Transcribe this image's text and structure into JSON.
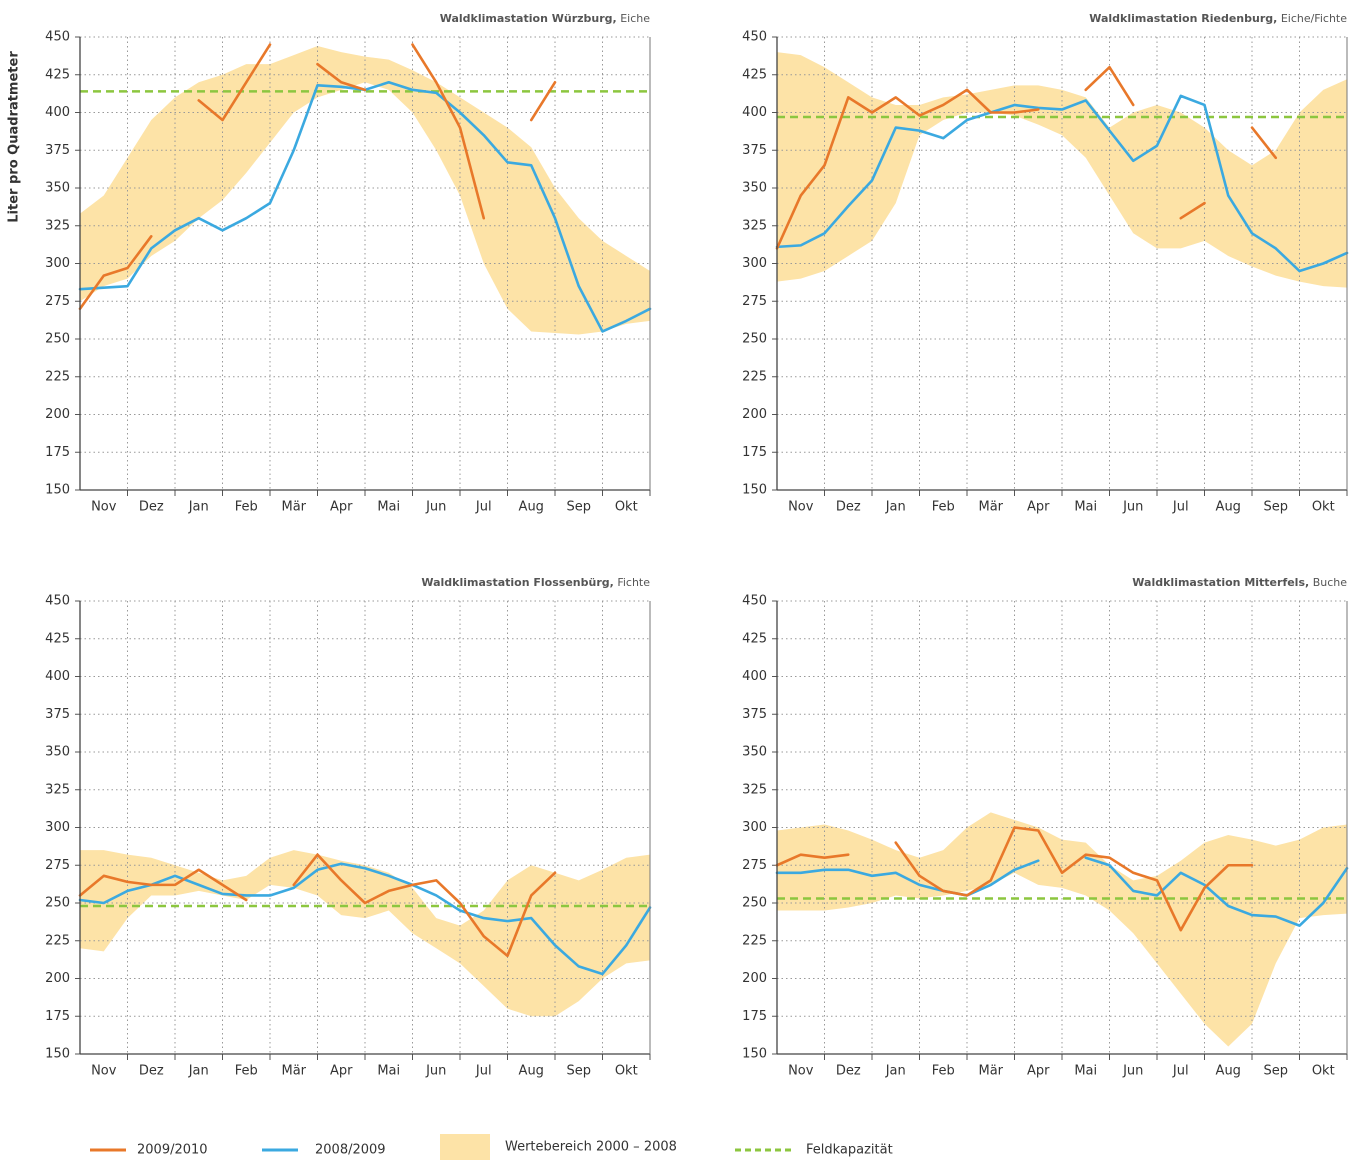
{
  "chart_data": [
    {
      "type": "line",
      "title": "Waldklimastation Würzburg,",
      "subtitle": "Eiche",
      "ylabel": "Liter pro Quadratmeter",
      "categories": [
        "Nov",
        "Dez",
        "Jan",
        "Feb",
        "Mär",
        "Apr",
        "Mai",
        "Jun",
        "Jul",
        "Aug",
        "Sep",
        "Okt"
      ],
      "x": [
        0,
        0.5,
        1,
        1.5,
        2,
        2.5,
        3,
        3.5,
        4,
        4.5,
        5,
        5.5,
        6,
        6.5,
        7,
        7.5,
        8,
        8.5,
        9,
        9.5,
        10,
        10.5,
        11,
        11.5,
        12
      ],
      "xlim": [
        0,
        12
      ],
      "ylim": [
        150,
        450
      ],
      "yticks": [
        150,
        175,
        200,
        225,
        250,
        275,
        300,
        325,
        350,
        375,
        400,
        425,
        450
      ],
      "grid": true,
      "series": [
        {
          "name": "2009/2010",
          "color": "#e8782a",
          "values": [
            270,
            292,
            297,
            318,
            null,
            408,
            395,
            420,
            445,
            null,
            432,
            420,
            415,
            null,
            445,
            420,
            390,
            330,
            null,
            395,
            420,
            null,
            null,
            null,
            null
          ]
        },
        {
          "name": "2008/2009",
          "color": "#3ba9e0",
          "values": [
            283,
            284,
            285,
            310,
            322,
            330,
            322,
            330,
            340,
            375,
            418,
            417,
            415,
            420,
            415,
            413,
            400,
            385,
            367,
            365,
            330,
            285,
            255,
            262,
            270
          ]
        },
        {
          "name": "Wertebereich 2000 – 2008",
          "color": "#fde3a7",
          "high": [
            333,
            345,
            370,
            395,
            410,
            420,
            425,
            432,
            432,
            438,
            444,
            440,
            437,
            435,
            428,
            420,
            410,
            400,
            390,
            377,
            350,
            330,
            315,
            305,
            295
          ],
          "low": [
            275,
            285,
            290,
            305,
            315,
            330,
            342,
            360,
            380,
            400,
            410,
            415,
            420,
            415,
            400,
            375,
            345,
            300,
            270,
            255,
            254,
            253,
            255,
            260,
            262
          ]
        },
        {
          "name": "Feldkapazität",
          "color": "#8cc63f",
          "value": 414
        }
      ]
    },
    {
      "type": "line",
      "title": "Waldklimastation Riedenburg,",
      "subtitle": "Eiche/Fichte",
      "categories": [
        "Nov",
        "Dez",
        "Jan",
        "Feb",
        "Mär",
        "Apr",
        "Mai",
        "Jun",
        "Jul",
        "Aug",
        "Sep",
        "Okt"
      ],
      "x": [
        0,
        0.5,
        1,
        1.5,
        2,
        2.5,
        3,
        3.5,
        4,
        4.5,
        5,
        5.5,
        6,
        6.5,
        7,
        7.5,
        8,
        8.5,
        9,
        9.5,
        10,
        10.5,
        11,
        11.5,
        12
      ],
      "xlim": [
        0,
        12
      ],
      "ylim": [
        150,
        450
      ],
      "yticks": [
        150,
        175,
        200,
        225,
        250,
        275,
        300,
        325,
        350,
        375,
        400,
        425,
        450
      ],
      "grid": true,
      "series": [
        {
          "name": "2009/2010",
          "color": "#e8782a",
          "values": [
            310,
            345,
            365,
            410,
            400,
            410,
            398,
            405,
            415,
            400,
            400,
            402,
            null,
            415,
            430,
            405,
            null,
            330,
            340,
            null,
            390,
            370,
            null,
            null,
            null
          ]
        },
        {
          "name": "2008/2009",
          "color": "#3ba9e0",
          "values": [
            311,
            312,
            320,
            338,
            355,
            390,
            388,
            383,
            395,
            400,
            405,
            403,
            402,
            408,
            388,
            368,
            378,
            411,
            405,
            345,
            320,
            310,
            295,
            300,
            307
          ]
        },
        {
          "name": "Wertebereich 2000 – 2008",
          "color": "#fde3a7",
          "high": [
            440,
            438,
            430,
            420,
            410,
            405,
            405,
            410,
            412,
            415,
            418,
            418,
            415,
            410,
            390,
            400,
            405,
            400,
            390,
            375,
            365,
            375,
            400,
            415,
            422
          ],
          "low": [
            288,
            290,
            295,
            305,
            315,
            340,
            385,
            395,
            400,
            400,
            398,
            392,
            385,
            370,
            345,
            320,
            310,
            310,
            315,
            305,
            298,
            292,
            288,
            285,
            284
          ]
        },
        {
          "name": "Feldkapazität",
          "color": "#8cc63f",
          "value": 397
        }
      ]
    },
    {
      "type": "line",
      "title": "Waldklimastation Flossenbürg,",
      "subtitle": "Fichte",
      "categories": [
        "Nov",
        "Dez",
        "Jan",
        "Feb",
        "Mär",
        "Apr",
        "Mai",
        "Jun",
        "Jul",
        "Aug",
        "Sep",
        "Okt"
      ],
      "x": [
        0,
        0.5,
        1,
        1.5,
        2,
        2.5,
        3,
        3.5,
        4,
        4.5,
        5,
        5.5,
        6,
        6.5,
        7,
        7.5,
        8,
        8.5,
        9,
        9.5,
        10,
        10.5,
        11,
        11.5,
        12
      ],
      "xlim": [
        0,
        12
      ],
      "ylim": [
        150,
        450
      ],
      "yticks": [
        150,
        175,
        200,
        225,
        250,
        275,
        300,
        325,
        350,
        375,
        400,
        425,
        450
      ],
      "grid": true,
      "series": [
        {
          "name": "2009/2010",
          "color": "#e8782a",
          "values": [
            255,
            268,
            264,
            262,
            262,
            272,
            262,
            252,
            null,
            262,
            282,
            265,
            250,
            258,
            262,
            265,
            250,
            228,
            215,
            255,
            270,
            null,
            null,
            null,
            null
          ]
        },
        {
          "name": "2008/2009",
          "color": "#3ba9e0",
          "values": [
            252,
            250,
            258,
            262,
            268,
            262,
            256,
            255,
            255,
            260,
            272,
            276,
            273,
            268,
            262,
            255,
            245,
            240,
            238,
            240,
            222,
            208,
            203,
            222,
            247
          ]
        },
        {
          "name": "Wertebereich 2000 – 2008",
          "color": "#fde3a7",
          "high": [
            285,
            285,
            282,
            280,
            275,
            270,
            265,
            268,
            280,
            285,
            282,
            278,
            275,
            270,
            260,
            240,
            235,
            245,
            265,
            275,
            270,
            265,
            272,
            280,
            282
          ],
          "low": [
            220,
            218,
            240,
            255,
            255,
            258,
            255,
            252,
            262,
            260,
            255,
            242,
            240,
            245,
            230,
            220,
            210,
            195,
            180,
            175,
            175,
            185,
            200,
            210,
            212
          ]
        },
        {
          "name": "Feldkapazität",
          "color": "#8cc63f",
          "value": 248
        }
      ]
    },
    {
      "type": "line",
      "title": "Waldklimastation Mitterfels,",
      "subtitle": "Buche",
      "categories": [
        "Nov",
        "Dez",
        "Jan",
        "Feb",
        "Mär",
        "Apr",
        "Mai",
        "Jun",
        "Jul",
        "Aug",
        "Sep",
        "Okt"
      ],
      "x": [
        0,
        0.5,
        1,
        1.5,
        2,
        2.5,
        3,
        3.5,
        4,
        4.5,
        5,
        5.5,
        6,
        6.5,
        7,
        7.5,
        8,
        8.5,
        9,
        9.5,
        10,
        10.5,
        11,
        11.5,
        12
      ],
      "xlim": [
        0,
        12
      ],
      "ylim": [
        150,
        450
      ],
      "yticks": [
        150,
        175,
        200,
        225,
        250,
        275,
        300,
        325,
        350,
        375,
        400,
        425,
        450
      ],
      "grid": true,
      "series": [
        {
          "name": "2009/2010",
          "color": "#e8782a",
          "values": [
            275,
            282,
            280,
            282,
            null,
            290,
            268,
            258,
            255,
            265,
            300,
            298,
            270,
            282,
            280,
            270,
            265,
            232,
            260,
            275,
            275,
            null,
            null,
            null,
            null
          ]
        },
        {
          "name": "2008/2009",
          "color": "#3ba9e0",
          "values": [
            270,
            270,
            272,
            272,
            268,
            270,
            262,
            258,
            255,
            262,
            272,
            278,
            null,
            280,
            275,
            258,
            255,
            270,
            262,
            248,
            242,
            241,
            235,
            250,
            273
          ]
        },
        {
          "name": "Wertebereich 2000 – 2008",
          "color": "#fde3a7",
          "high": [
            298,
            300,
            302,
            298,
            292,
            285,
            280,
            285,
            300,
            310,
            305,
            300,
            292,
            290,
            275,
            265,
            268,
            278,
            290,
            295,
            292,
            288,
            292,
            300,
            302
          ],
          "low": [
            245,
            245,
            245,
            247,
            250,
            255,
            253,
            255,
            258,
            262,
            270,
            262,
            260,
            255,
            245,
            230,
            210,
            190,
            170,
            155,
            170,
            210,
            240,
            242,
            243
          ]
        },
        {
          "name": "Feldkapazität",
          "color": "#8cc63f",
          "value": 253
        }
      ]
    }
  ]
}
